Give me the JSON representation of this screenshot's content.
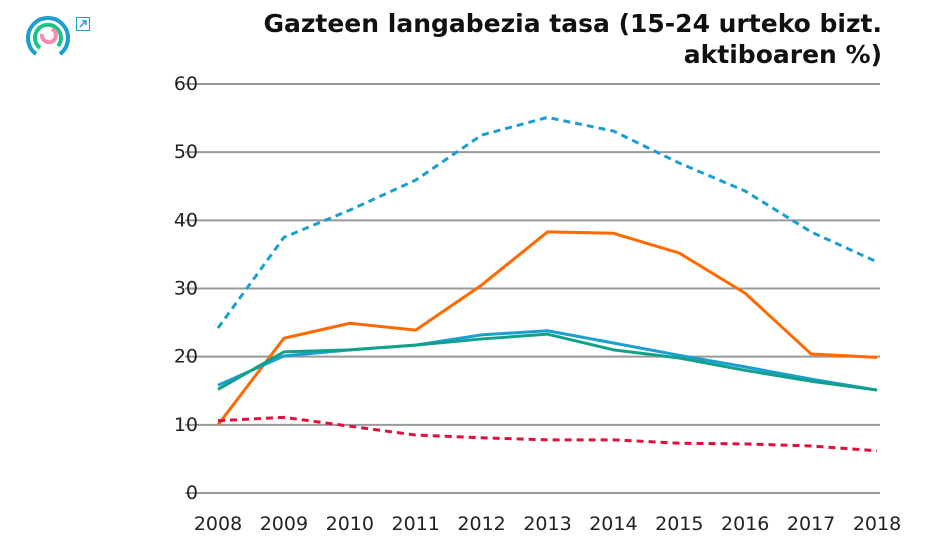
{
  "header": {
    "logo_icon": "eustat-logo-icon",
    "expand_icon": "expand-arrow-icon"
  },
  "chart_data": {
    "type": "line",
    "title": "Gazteen langabezia tasa (15-24 urteko bizt. aktiboaren %)",
    "xlabel": "",
    "ylabel": "",
    "x": [
      "2008",
      "2009",
      "2010",
      "2011",
      "2012",
      "2013",
      "2014",
      "2015",
      "2016",
      "2017",
      "2018"
    ],
    "yticks": [
      "0",
      "10",
      "20",
      "30",
      "40",
      "50",
      "60"
    ],
    "ylim": [
      0,
      60
    ],
    "grid": "horizontal",
    "series": [
      {
        "color": "#1a9fd0",
        "style": "dashed",
        "values": [
          24.2,
          37.5,
          41.5,
          45.9,
          52.5,
          55.1,
          53.1,
          48.4,
          44.3,
          38.3,
          33.9
        ]
      },
      {
        "color": "#ff6a00",
        "style": "solid",
        "values": [
          10.0,
          22.7,
          24.9,
          23.9,
          30.5,
          38.3,
          38.1,
          35.2,
          29.3,
          20.4,
          19.9
        ]
      },
      {
        "color": "#1a9fd0",
        "style": "solid",
        "values": [
          15.8,
          20.1,
          21.0,
          21.7,
          23.2,
          23.8,
          22.0,
          20.2,
          18.5,
          16.7,
          15.1
        ]
      },
      {
        "color": "#11a08a",
        "style": "solid",
        "values": [
          15.2,
          20.7,
          21.0,
          21.7,
          22.6,
          23.3,
          21.0,
          19.8,
          18.0,
          16.4,
          15.1
        ]
      },
      {
        "color": "#e0103c",
        "style": "dashed",
        "values": [
          10.6,
          11.1,
          9.8,
          8.5,
          8.1,
          7.8,
          7.8,
          7.3,
          7.2,
          6.9,
          6.2
        ]
      }
    ]
  }
}
